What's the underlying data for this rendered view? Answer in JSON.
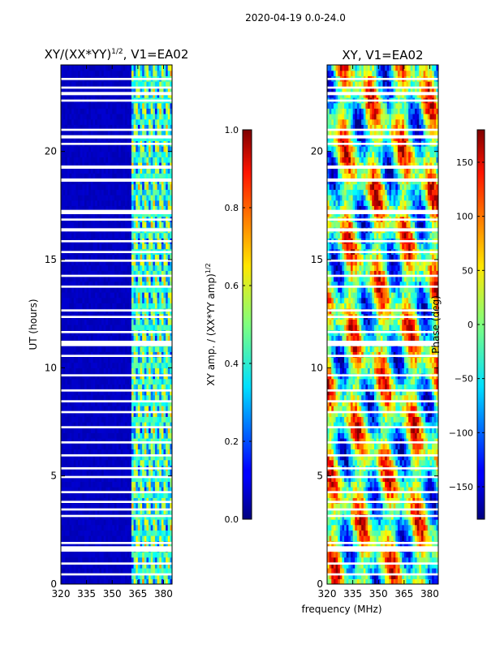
{
  "figure": {
    "suptitle": "2020-04-19 0.0-24.0",
    "shared_xlabel": "frequency (MHz)"
  },
  "chart_data": [
    {
      "type": "heatmap",
      "title": "XY/(XX*YY)",
      "title_exponent": "1/2",
      "title_suffix": ", V1=EA02",
      "xlabel": "",
      "ylabel": "UT (hours)",
      "xlim": [
        320,
        385
      ],
      "ylim": [
        0,
        24
      ],
      "xticks": [
        320,
        335,
        350,
        365,
        380
      ],
      "yticks": [
        0,
        5,
        10,
        15,
        20
      ],
      "colorbar": {
        "label": "XY amp. / (XX*YY amp)",
        "label_exponent": "1/2",
        "range": [
          0.0,
          1.0
        ],
        "ticks": [
          0.0,
          0.2,
          0.4,
          0.6,
          0.8,
          1.0
        ],
        "tick_labels": [
          "0.0",
          "0.2",
          "0.4",
          "0.6",
          "0.8",
          "1.0"
        ],
        "colormap": "jet"
      },
      "description_values": {
        "low_band_level": 0.05,
        "high_band_start_mhz": 361,
        "high_band_level": 0.35
      }
    },
    {
      "type": "heatmap",
      "title": "XY, V1=EA02",
      "xlabel": "frequency (MHz)",
      "ylabel": "",
      "xlim": [
        320,
        385
      ],
      "ylim": [
        0,
        24
      ],
      "xticks": [
        320,
        335,
        350,
        365,
        380
      ],
      "yticks": [
        0,
        5,
        10,
        15,
        20
      ],
      "colorbar": {
        "label": "Phase (deg)",
        "range": [
          -180,
          180
        ],
        "ticks": [
          150,
          100,
          50,
          0,
          -50,
          -100,
          -150
        ],
        "tick_labels": [
          "150",
          "100",
          "50",
          "0",
          "−50",
          "−100",
          "−150"
        ],
        "colormap": "jet"
      }
    }
  ],
  "flagged_time_ranges_hours": [
    [
      0.4,
      0.5
    ],
    [
      0.9,
      1.0
    ],
    [
      1.5,
      1.75
    ],
    [
      1.85,
      1.95
    ],
    [
      3.1,
      3.2
    ],
    [
      3.4,
      3.5
    ],
    [
      3.75,
      3.85
    ],
    [
      4.2,
      4.3
    ],
    [
      4.9,
      5.0
    ],
    [
      5.3,
      5.4
    ],
    [
      5.9,
      6.0
    ],
    [
      6.5,
      6.6
    ],
    [
      7.2,
      7.3
    ],
    [
      7.9,
      8.0
    ],
    [
      8.4,
      8.5
    ],
    [
      8.9,
      9.0
    ],
    [
      9.6,
      9.7
    ],
    [
      10.5,
      10.6
    ],
    [
      11.0,
      11.25
    ],
    [
      11.6,
      11.7
    ],
    [
      12.3,
      12.4
    ],
    [
      12.6,
      12.7
    ],
    [
      13.7,
      13.8
    ],
    [
      14.2,
      14.3
    ],
    [
      14.9,
      15.0
    ],
    [
      15.3,
      15.4
    ],
    [
      15.8,
      15.9
    ],
    [
      16.3,
      16.45
    ],
    [
      16.8,
      16.9
    ],
    [
      17.1,
      17.3
    ],
    [
      18.6,
      18.75
    ],
    [
      19.2,
      19.35
    ],
    [
      20.3,
      20.4
    ],
    [
      20.6,
      20.75
    ],
    [
      20.95,
      21.05
    ],
    [
      22.3,
      22.4
    ],
    [
      22.6,
      22.75
    ],
    [
      22.9,
      23.0
    ],
    [
      23.3,
      23.4
    ]
  ]
}
